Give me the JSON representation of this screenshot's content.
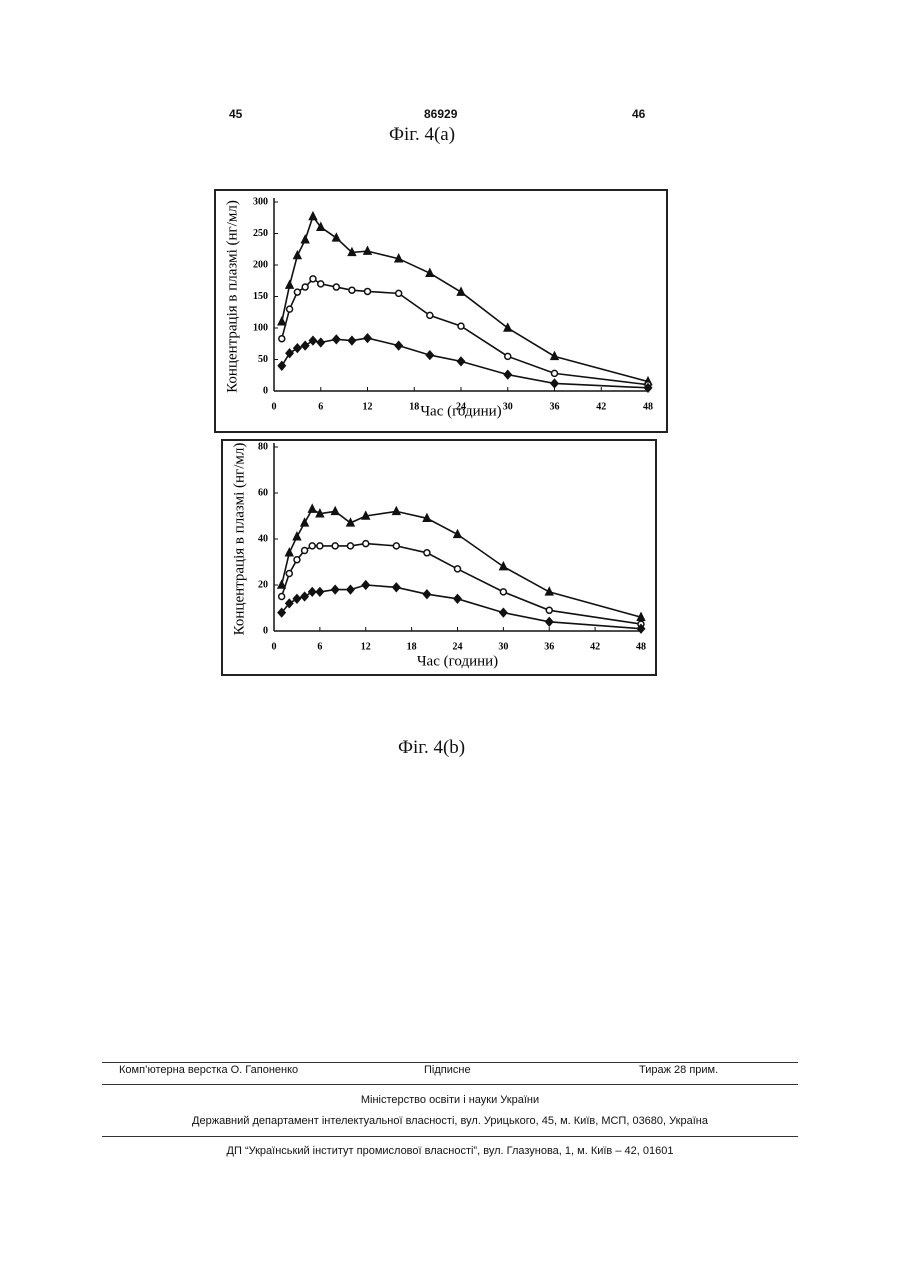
{
  "header": {
    "left": "45",
    "center": "86929",
    "right": "46"
  },
  "figure_a_caption": "Фіг. 4(а)",
  "figure_b_caption": "Фіг. 4(b)",
  "chart_data": [
    {
      "type": "line",
      "y_label": "Концентрація в плазмі (нг/мл)",
      "x_label": "Час (години)",
      "x": [
        1,
        2,
        3,
        4,
        5,
        6,
        8,
        10,
        12,
        16,
        20,
        24,
        30,
        36,
        48
      ],
      "xlim": [
        0,
        48
      ],
      "xticks": [
        0,
        6,
        12,
        18,
        24,
        30,
        36,
        42,
        48
      ],
      "ylim": [
        0,
        300
      ],
      "yticks": [
        0,
        50,
        100,
        150,
        200,
        250,
        300
      ],
      "grid": false,
      "series": [
        {
          "color": "#111111",
          "marker": "triangle",
          "values": [
            110,
            168,
            215,
            240,
            277,
            260,
            243,
            220,
            222,
            210,
            187,
            157,
            100,
            55,
            15
          ]
        },
        {
          "color": "#111111",
          "marker": "circle",
          "values": [
            83,
            130,
            157,
            165,
            178,
            170,
            165,
            160,
            158,
            155,
            120,
            103,
            55,
            28,
            10
          ]
        },
        {
          "color": "#111111",
          "marker": "diamond",
          "values": [
            40,
            60,
            68,
            72,
            80,
            77,
            82,
            80,
            84,
            72,
            57,
            47,
            26,
            12,
            5
          ]
        }
      ]
    },
    {
      "type": "line",
      "y_label": "Концентрація в плазмі (нг/мл)",
      "x_label": "Час (години)",
      "x": [
        1,
        2,
        3,
        4,
        5,
        6,
        8,
        10,
        12,
        16,
        20,
        24,
        30,
        36,
        48
      ],
      "xlim": [
        0,
        48
      ],
      "xticks": [
        0,
        6,
        12,
        18,
        24,
        30,
        36,
        42,
        48
      ],
      "ylim": [
        0,
        80
      ],
      "yticks": [
        0,
        20,
        40,
        60,
        80
      ],
      "grid": false,
      "series": [
        {
          "color": "#111111",
          "marker": "triangle",
          "values": [
            20,
            34,
            41,
            47,
            53,
            51,
            52,
            47,
            50,
            52,
            49,
            42,
            28,
            17,
            6
          ]
        },
        {
          "color": "#111111",
          "marker": "circle",
          "values": [
            15,
            25,
            31,
            35,
            37,
            37,
            37,
            37,
            38,
            37,
            34,
            27,
            17,
            9,
            3
          ]
        },
        {
          "color": "#111111",
          "marker": "diamond",
          "values": [
            8,
            12,
            14,
            15,
            17,
            17,
            18,
            18,
            20,
            19,
            16,
            14,
            8,
            4,
            1
          ]
        }
      ]
    }
  ],
  "footer": {
    "typesetter": "Комп’ютерна верстка О. Гапоненко",
    "signed": "Підписне",
    "print_run": "Тираж 28 прим.",
    "ministry": "Міністерство освіти і науки України",
    "department": "Державний департамент інтелектуальної власності, вул. Урицького, 45, м. Київ, МСП, 03680, Україна",
    "institute": "ДП “Український інститут промислової власності”, вул. Глазунова, 1, м. Київ – 42, 01601"
  }
}
